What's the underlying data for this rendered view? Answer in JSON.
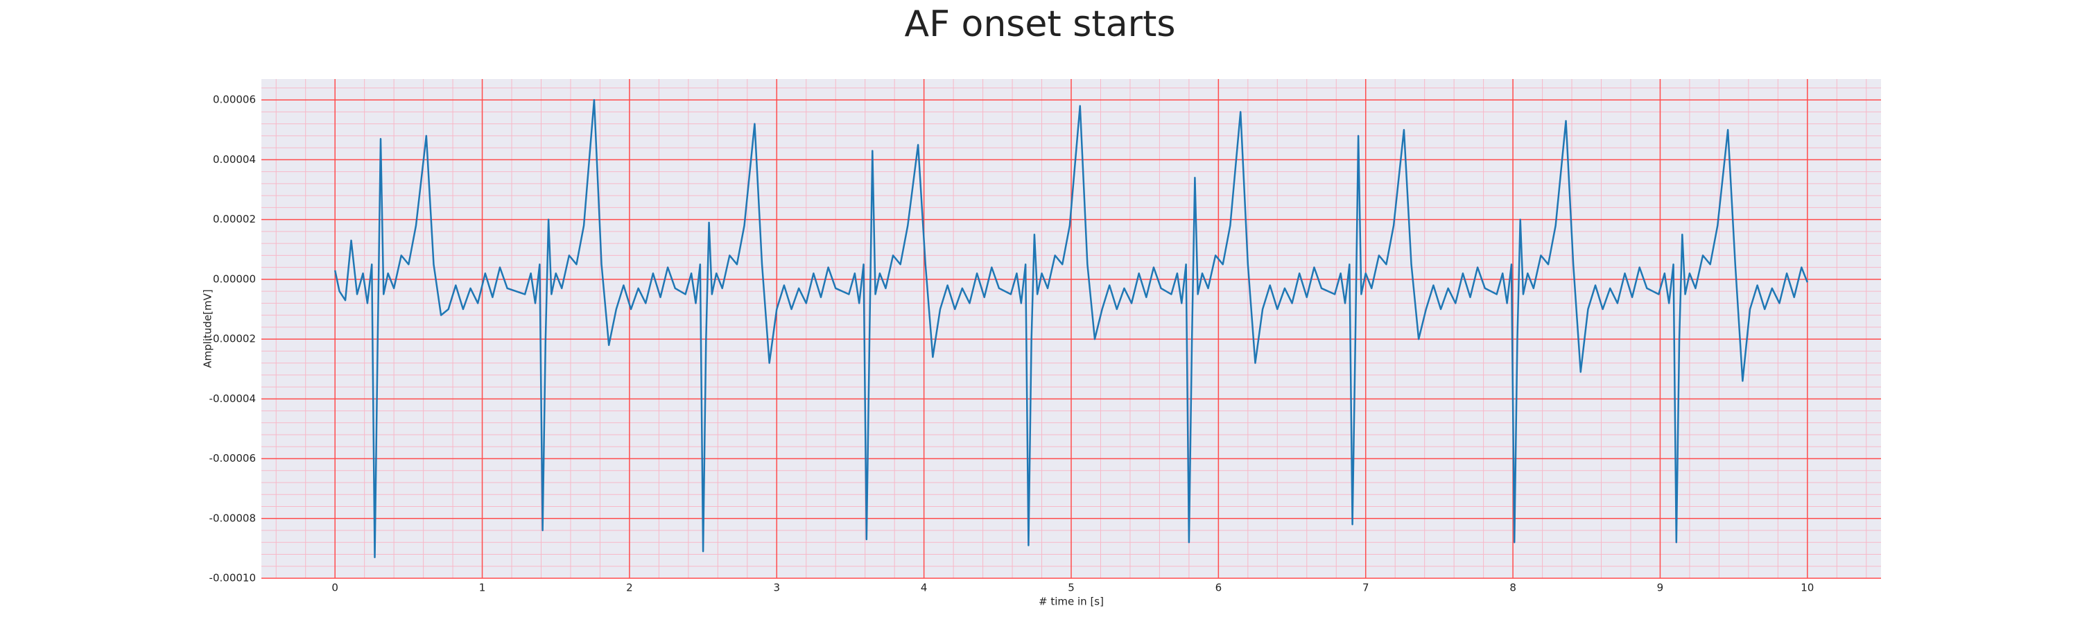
{
  "chart_data": {
    "type": "line",
    "title": "AF onset starts",
    "xlabel": "# time in [s]",
    "ylabel": "Amplitude[mV]",
    "xlim": [
      -0.5,
      10.5
    ],
    "ylim": [
      -0.0001,
      6.7e-05
    ],
    "xticks": [
      0,
      1,
      2,
      3,
      4,
      5,
      6,
      7,
      8,
      9,
      10
    ],
    "yticks": [
      {
        "value": -0.0001,
        "label": "-0.00010"
      },
      -8e-05,
      -6e-05,
      -4e-05,
      -2e-05,
      {
        "value": 0,
        "label": "0.00000"
      },
      2e-05,
      4e-05,
      6e-05
    ],
    "grid": true,
    "grid_color": "#ff4d4d",
    "minor_grid_color": "#f7b8c8",
    "minor_divisions": 5,
    "background": "#eaeaf2",
    "series": [
      {
        "color": "#1f77b4",
        "x": [
          0,
          0.03,
          0.07,
          0.11,
          0.15,
          0.19,
          0.22,
          0.25,
          0.27,
          0.29,
          0.31,
          0.33,
          0.36,
          0.4,
          0.45,
          0.5,
          0.55,
          0.62,
          0.67,
          0.72,
          0.77,
          0.82,
          0.87,
          0.92,
          0.97,
          1.02,
          1.07,
          1.12,
          1.17,
          1.29,
          1.33,
          1.36,
          1.39,
          1.41,
          1.43,
          1.45,
          1.47,
          1.5,
          1.54,
          1.59,
          1.64,
          1.69,
          1.76,
          1.81,
          1.86,
          1.91,
          1.96,
          2.01,
          2.06,
          2.11,
          2.16,
          2.21,
          2.26,
          2.31,
          2.38,
          2.42,
          2.45,
          2.48,
          2.5,
          2.52,
          2.54,
          2.56,
          2.59,
          2.63,
          2.68,
          2.73,
          2.78,
          2.85,
          2.9,
          2.95,
          3.0,
          3.05,
          3.1,
          3.15,
          3.2,
          3.25,
          3.3,
          3.35,
          3.4,
          3.49,
          3.53,
          3.56,
          3.59,
          3.61,
          3.63,
          3.65,
          3.67,
          3.7,
          3.74,
          3.79,
          3.84,
          3.89,
          3.96,
          4.01,
          4.06,
          4.11,
          4.16,
          4.21,
          4.26,
          4.31,
          4.36,
          4.41,
          4.46,
          4.51,
          4.59,
          4.63,
          4.66,
          4.69,
          4.71,
          4.73,
          4.75,
          4.77,
          4.8,
          4.84,
          4.89,
          4.94,
          4.99,
          5.06,
          5.11,
          5.16,
          5.21,
          5.26,
          5.31,
          5.36,
          5.41,
          5.46,
          5.51,
          5.56,
          5.61,
          5.68,
          5.72,
          5.75,
          5.78,
          5.8,
          5.82,
          5.84,
          5.86,
          5.89,
          5.93,
          5.98,
          6.03,
          6.08,
          6.15,
          6.2,
          6.25,
          6.3,
          6.35,
          6.4,
          6.45,
          6.5,
          6.55,
          6.6,
          6.65,
          6.7,
          6.79,
          6.83,
          6.86,
          6.89,
          6.91,
          6.93,
          6.95,
          6.97,
          7.0,
          7.04,
          7.09,
          7.14,
          7.19,
          7.26,
          7.31,
          7.36,
          7.41,
          7.46,
          7.51,
          7.56,
          7.61,
          7.66,
          7.71,
          7.76,
          7.81,
          7.89,
          7.93,
          7.96,
          7.99,
          8.01,
          8.03,
          8.05,
          8.07,
          8.1,
          8.14,
          8.19,
          8.24,
          8.29,
          8.36,
          8.41,
          8.46,
          8.51,
          8.56,
          8.61,
          8.66,
          8.71,
          8.76,
          8.81,
          8.86,
          8.91,
          8.99,
          9.03,
          9.06,
          9.09,
          9.11,
          9.13,
          9.15,
          9.17,
          9.2,
          9.24,
          9.29,
          9.34,
          9.39,
          9.46,
          9.51,
          9.56,
          9.61,
          9.66,
          9.71,
          9.76,
          9.81,
          9.86,
          9.91,
          9.96,
          10.0
        ],
        "values": [
          3e-06,
          -4e-06,
          -7e-06,
          1.3e-05,
          -5e-06,
          2e-06,
          -8e-06,
          5e-06,
          -9.3e-05,
          -2e-05,
          4.7e-05,
          -5e-06,
          2e-06,
          -3e-06,
          8e-06,
          5e-06,
          1.8e-05,
          4.8e-05,
          5e-06,
          -1.2e-05,
          -1e-05,
          -2e-06,
          -1e-05,
          -3e-06,
          -8e-06,
          2e-06,
          -6e-06,
          4e-06,
          -3e-06,
          -5e-06,
          2e-06,
          -8e-06,
          5e-06,
          -8.4e-05,
          -2e-05,
          2e-05,
          -5e-06,
          2e-06,
          -3e-06,
          8e-06,
          5e-06,
          1.8e-05,
          6e-05,
          5e-06,
          -2.2e-05,
          -1e-05,
          -2e-06,
          -1e-05,
          -3e-06,
          -8e-06,
          2e-06,
          -6e-06,
          4e-06,
          -3e-06,
          -5e-06,
          2e-06,
          -8e-06,
          5e-06,
          -9.1e-05,
          -2e-05,
          1.9e-05,
          -5e-06,
          2e-06,
          -3e-06,
          8e-06,
          5e-06,
          1.8e-05,
          5.2e-05,
          5e-06,
          -2.8e-05,
          -1e-05,
          -2e-06,
          -1e-05,
          -3e-06,
          -8e-06,
          2e-06,
          -6e-06,
          4e-06,
          -3e-06,
          -5e-06,
          2e-06,
          -8e-06,
          5e-06,
          -8.7e-05,
          -2e-05,
          4.3e-05,
          -5e-06,
          2e-06,
          -3e-06,
          8e-06,
          5e-06,
          1.8e-05,
          4.5e-05,
          5e-06,
          -2.6e-05,
          -1e-05,
          -2e-06,
          -1e-05,
          -3e-06,
          -8e-06,
          2e-06,
          -6e-06,
          4e-06,
          -3e-06,
          -5e-06,
          2e-06,
          -8e-06,
          5e-06,
          -8.9e-05,
          -2e-05,
          1.5e-05,
          -5e-06,
          2e-06,
          -3e-06,
          8e-06,
          5e-06,
          1.8e-05,
          5.8e-05,
          5e-06,
          -2e-05,
          -1e-05,
          -2e-06,
          -1e-05,
          -3e-06,
          -8e-06,
          2e-06,
          -6e-06,
          4e-06,
          -3e-06,
          -5e-06,
          2e-06,
          -8e-06,
          5e-06,
          -8.8e-05,
          -2e-05,
          3.4e-05,
          -5e-06,
          2e-06,
          -3e-06,
          8e-06,
          5e-06,
          1.8e-05,
          5.6e-05,
          5e-06,
          -2.8e-05,
          -1e-05,
          -2e-06,
          -1e-05,
          -3e-06,
          -8e-06,
          2e-06,
          -6e-06,
          4e-06,
          -3e-06,
          -5e-06,
          2e-06,
          -8e-06,
          5e-06,
          -8.2e-05,
          -2e-05,
          4.8e-05,
          -5e-06,
          2e-06,
          -3e-06,
          8e-06,
          5e-06,
          1.8e-05,
          5e-05,
          5e-06,
          -2e-05,
          -1e-05,
          -2e-06,
          -1e-05,
          -3e-06,
          -8e-06,
          2e-06,
          -6e-06,
          4e-06,
          -3e-06,
          -5e-06,
          2e-06,
          -8e-06,
          5e-06,
          -8.8e-05,
          -2e-05,
          2e-05,
          -5e-06,
          2e-06,
          -3e-06,
          8e-06,
          5e-06,
          1.8e-05,
          5.3e-05,
          5e-06,
          -3.1e-05,
          -1e-05,
          -2e-06,
          -1e-05,
          -3e-06,
          -8e-06,
          2e-06,
          -6e-06,
          4e-06,
          -3e-06,
          -5e-06,
          2e-06,
          -8e-06,
          5e-06,
          -8.8e-05,
          -2e-05,
          1.5e-05,
          -5e-06,
          2e-06,
          -3e-06,
          8e-06,
          5e-06,
          1.8e-05,
          5e-05,
          5e-06,
          -3.4e-05,
          -1e-05,
          -2e-06,
          -1e-05,
          -3e-06,
          -8e-06,
          2e-06,
          -6e-06,
          4e-06,
          -1e-06
        ]
      }
    ]
  }
}
